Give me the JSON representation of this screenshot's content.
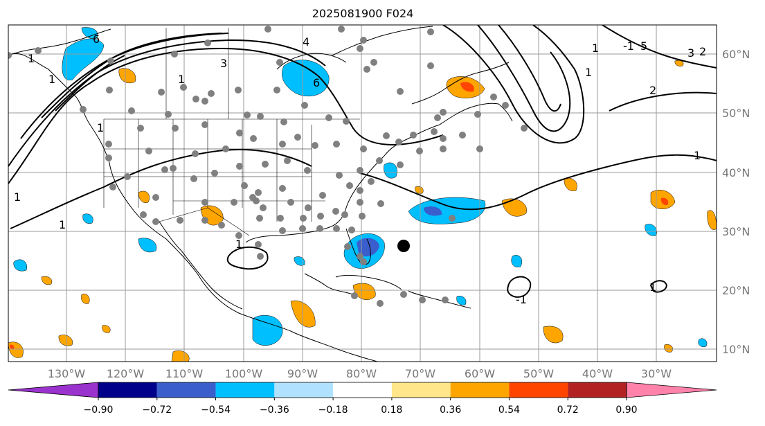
{
  "title": "2025081900 F024",
  "lon_labels": [
    "130°W",
    "120°W",
    "110°W",
    "100°W",
    "90°W",
    "80°W",
    "70°W",
    "60°W",
    "50°W",
    "40°W",
    "30°W"
  ],
  "lat_labels": [
    "60°N",
    "50°N",
    "40°N",
    "30°N",
    "20°N",
    "10°N"
  ],
  "colorbar": {
    "ticks": [
      "−0.90",
      "−0.72",
      "−0.54",
      "−0.36",
      "−0.18",
      "0.18",
      "0.36",
      "0.54",
      "0.72",
      "0.90"
    ],
    "colors": [
      "#9a32cd",
      "#00008b",
      "#3a5fcd",
      "#00bfff",
      "#b0e2ff",
      "#ffffff",
      "#ffe68a",
      "#ffa500",
      "#ff4500",
      "#b22222",
      "#ff82ab"
    ]
  },
  "contour_labels": [
    "6",
    "4",
    "1",
    "1",
    "3",
    "6",
    "2",
    "1",
    "1",
    "1",
    "3",
    "2",
    "1",
    "1",
    "-1",
    "1",
    "1",
    "1",
    "1",
    "-1",
    "5"
  ],
  "colors": {
    "land_border": "#000000",
    "grid": "#999999",
    "station": "#808080"
  }
}
